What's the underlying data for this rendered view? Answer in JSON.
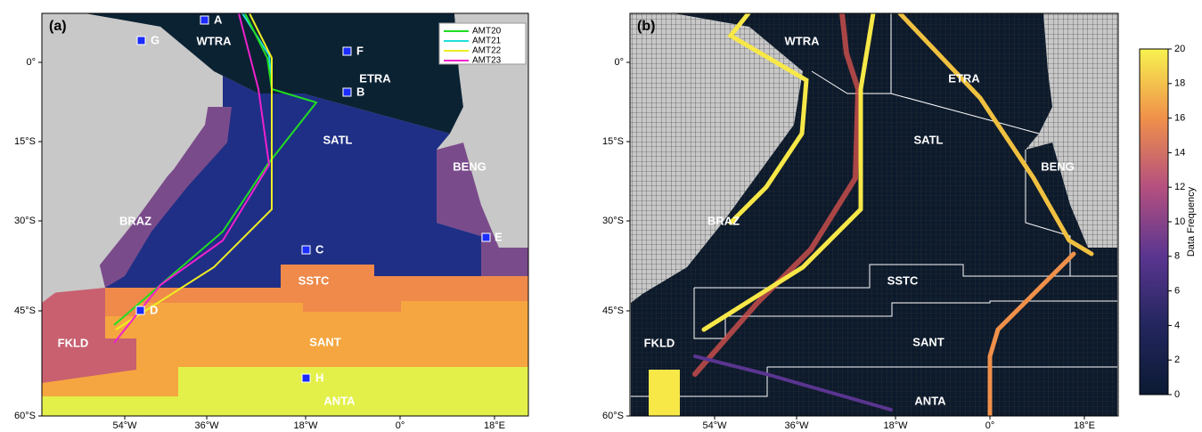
{
  "panel_a": {
    "label": "(a)",
    "provinces": [
      "WTRA",
      "ETRA",
      "SATL",
      "BENG",
      "BRAZ",
      "SSTC",
      "FKLD",
      "SANT",
      "ANTA"
    ],
    "stations": [
      "A",
      "G",
      "F",
      "B",
      "C",
      "D",
      "E",
      "H"
    ],
    "legend": [
      {
        "name": "AMT20",
        "color": "#22dd22"
      },
      {
        "name": "AMT21",
        "color": "#22dddd"
      },
      {
        "name": "AMT22",
        "color": "#eeee22"
      },
      {
        "name": "AMT23",
        "color": "#ee22cc"
      }
    ],
    "lon_ticks": [
      "54°W",
      "36°W",
      "18°W",
      "0°",
      "18°E"
    ],
    "lat_ticks": [
      "0°",
      "15°S",
      "30°S",
      "45°S",
      "60°S"
    ]
  },
  "panel_b": {
    "label": "(b)",
    "provinces": [
      "WTRA",
      "ETRA",
      "SATL",
      "BENG",
      "BRAZ",
      "SSTC",
      "FKLD",
      "SANT",
      "ANTA"
    ],
    "lon_ticks": [
      "54°W",
      "36°W",
      "18°W",
      "0°",
      "18°E"
    ],
    "lat_ticks": [
      "0°",
      "15°S",
      "30°S",
      "45°S",
      "60°S"
    ],
    "colorbar": {
      "label": "Data Frequency",
      "lim": [
        0,
        20
      ],
      "ticks": [
        0,
        2,
        4,
        6,
        8,
        10,
        12,
        14,
        16,
        18,
        20
      ]
    }
  }
}
